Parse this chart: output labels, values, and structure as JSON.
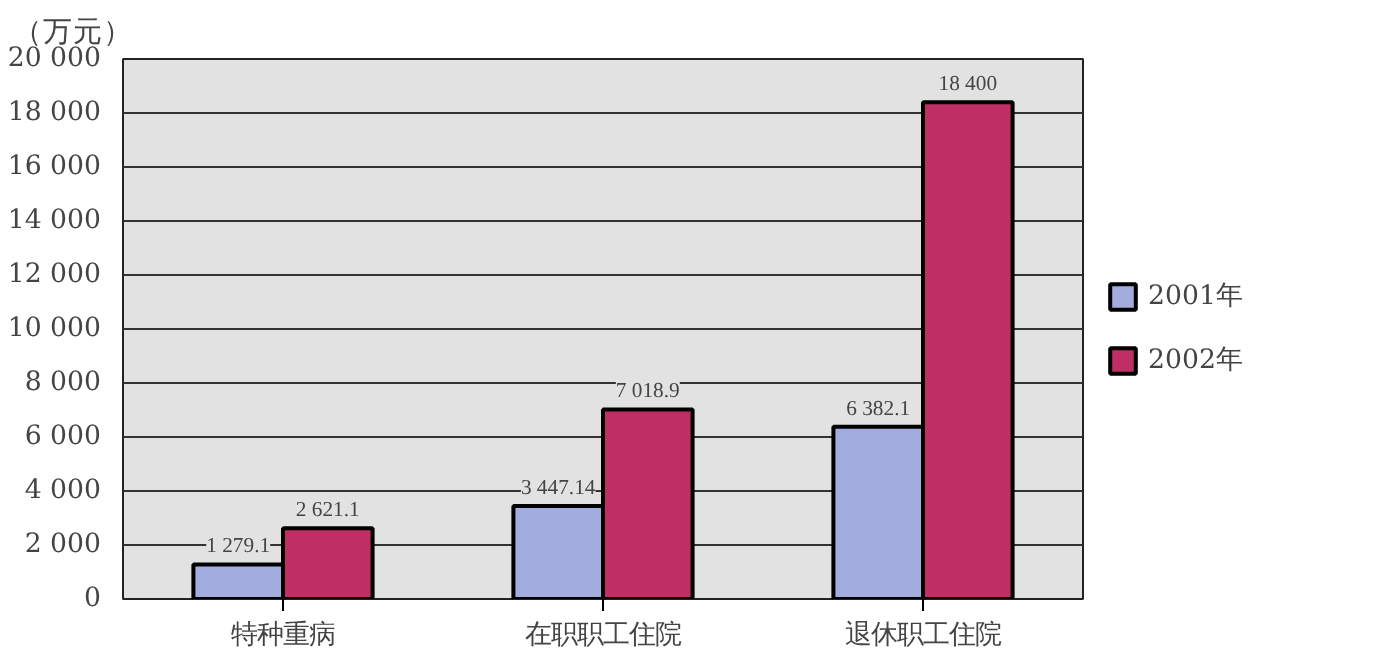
{
  "chart_data": {
    "type": "bar",
    "ylabel": "（万元）",
    "categories": [
      "特种重病",
      "在职职工住院",
      "退休职工住院"
    ],
    "series": [
      {
        "name": "2001年",
        "color": "#a3acdf",
        "values": [
          1279.1,
          3447.14,
          6382.1
        ],
        "value_labels": [
          "1 279.1",
          "3 447.14",
          "6 382.1"
        ]
      },
      {
        "name": "2002年",
        "color": "#bf2f66",
        "values": [
          2621.1,
          7018.9,
          18400
        ],
        "value_labels": [
          "2 621.1",
          "7 018.9",
          "18 400"
        ]
      }
    ],
    "ylim": [
      0,
      20000
    ],
    "yticks": [
      0,
      {
        "value": 2000,
        "label": "2 000"
      },
      {
        "value": 4000,
        "label": "4 000"
      },
      {
        "value": 6000,
        "label": "6 000"
      },
      {
        "value": 8000,
        "label": "8 000"
      },
      {
        "value": 10000,
        "label": "10 000"
      },
      {
        "value": 12000,
        "label": "12 000"
      },
      {
        "value": 14000,
        "label": "14 000"
      },
      {
        "value": 16000,
        "label": "16 000"
      },
      {
        "value": 18000,
        "label": "18 000"
      },
      {
        "value": 20000,
        "label": "20 000"
      }
    ],
    "grid": "y",
    "legend": "right"
  }
}
